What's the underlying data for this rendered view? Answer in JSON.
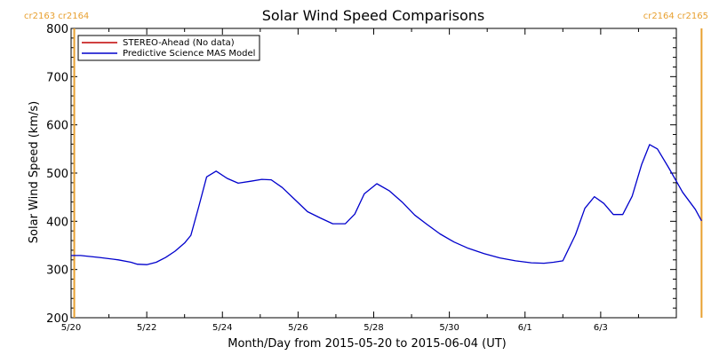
{
  "chart_data": {
    "type": "line",
    "title": "Solar Wind Speed Comparisons",
    "xlabel": "Month/Day from 2015-05-20 to 2015-06-04 (UT)",
    "ylabel": "Solar Wind Speed (km/s)",
    "ylim": [
      200,
      800
    ],
    "xlim": [
      "2015-05-20",
      "2015-06-04"
    ],
    "yticks": [
      200,
      300,
      400,
      500,
      600,
      700,
      800
    ],
    "xticks": [
      {
        "date": "2015-05-20",
        "label": "5/20"
      },
      {
        "date": "2015-05-22",
        "label": "5/22"
      },
      {
        "date": "2015-05-24",
        "label": "5/24"
      },
      {
        "date": "2015-05-26",
        "label": "5/26"
      },
      {
        "date": "2015-05-28",
        "label": "5/28"
      },
      {
        "date": "2015-05-30",
        "label": "5/30"
      },
      {
        "date": "2015-06-01",
        "label": "6/1"
      },
      {
        "date": "2015-06-03",
        "label": "6/3"
      }
    ],
    "legend_position": "top-left",
    "series": [
      {
        "name": "STEREO-Ahead (No data)",
        "color": "#c00000",
        "points": []
      },
      {
        "name": "Predictive Science MAS Model",
        "color": "#0000cc",
        "points": [
          [
            "2015-05-20 00:00",
            329
          ],
          [
            "2015-05-20 06:00",
            329
          ],
          [
            "2015-05-20 18:00",
            325
          ],
          [
            "2015-05-21 06:00",
            320
          ],
          [
            "2015-05-21 14:00",
            315
          ],
          [
            "2015-05-21 18:00",
            311
          ],
          [
            "2015-05-22 00:00",
            310
          ],
          [
            "2015-05-22 06:00",
            315
          ],
          [
            "2015-05-22 12:00",
            325
          ],
          [
            "2015-05-22 18:00",
            338
          ],
          [
            "2015-05-23 00:00",
            355
          ],
          [
            "2015-05-23 04:00",
            371
          ],
          [
            "2015-05-23 09:00",
            430
          ],
          [
            "2015-05-23 14:00",
            492
          ],
          [
            "2015-05-23 20:00",
            504
          ],
          [
            "2015-05-24 03:00",
            489
          ],
          [
            "2015-05-24 10:00",
            479
          ],
          [
            "2015-05-24 18:00",
            483
          ],
          [
            "2015-05-25 01:00",
            487
          ],
          [
            "2015-05-25 07:00",
            486
          ],
          [
            "2015-05-25 14:00",
            470
          ],
          [
            "2015-05-25 22:00",
            445
          ],
          [
            "2015-05-26 06:00",
            420
          ],
          [
            "2015-05-26 14:00",
            407
          ],
          [
            "2015-05-26 22:00",
            395
          ],
          [
            "2015-05-27 06:00",
            395
          ],
          [
            "2015-05-27 12:00",
            415
          ],
          [
            "2015-05-27 18:00",
            457
          ],
          [
            "2015-05-28 02:00",
            478
          ],
          [
            "2015-05-28 10:00",
            463
          ],
          [
            "2015-05-28 18:00",
            440
          ],
          [
            "2015-05-29 02:00",
            413
          ],
          [
            "2015-05-29 10:00",
            393
          ],
          [
            "2015-05-29 18:00",
            374
          ],
          [
            "2015-05-30 03:00",
            357
          ],
          [
            "2015-05-30 12:00",
            344
          ],
          [
            "2015-05-30 22:00",
            333
          ],
          [
            "2015-05-31 08:00",
            324
          ],
          [
            "2015-05-31 18:00",
            318
          ],
          [
            "2015-06-01 04:00",
            314
          ],
          [
            "2015-06-01 12:00",
            313
          ],
          [
            "2015-06-01 18:00",
            315
          ],
          [
            "2015-06-02 00:00",
            318
          ],
          [
            "2015-06-02 08:00",
            372
          ],
          [
            "2015-06-02 14:00",
            427
          ],
          [
            "2015-06-02 20:00",
            451
          ],
          [
            "2015-06-03 02:00",
            437
          ],
          [
            "2015-06-03 08:00",
            414
          ],
          [
            "2015-06-03 14:00",
            414
          ],
          [
            "2015-06-03 20:00",
            452
          ],
          [
            "2015-06-04 02:00",
            518
          ],
          [
            "2015-06-04 07:00",
            559
          ],
          [
            "2015-06-04 12:00",
            550
          ],
          [
            "2015-06-04 19:00",
            512
          ],
          [
            "2015-06-05 04:00",
            460
          ],
          [
            "2015-06-05 12:00",
            425
          ],
          [
            "2015-06-05 16:00",
            401
          ]
        ]
      }
    ],
    "carrington_markers": [
      {
        "date": "2015-05-20 02:00",
        "label": "cr2163 cr2164",
        "color": "#e8a030",
        "label_side": "left"
      },
      {
        "date": "2015-06-05 16:00",
        "label": "cr2164 cr2165",
        "color": "#e8a030",
        "label_side": "right"
      }
    ]
  }
}
